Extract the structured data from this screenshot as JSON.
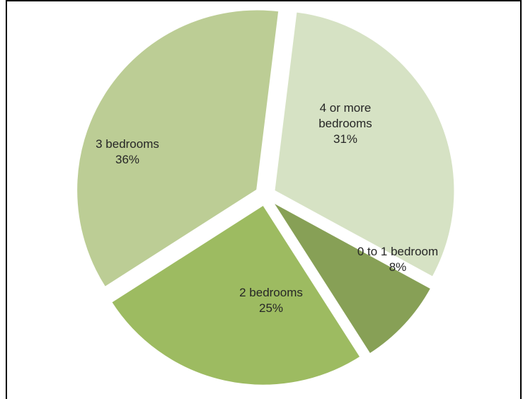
{
  "chart_data": {
    "type": "pie",
    "title": "",
    "categories": [
      "4 or more bedrooms",
      "0 to 1 bedroom",
      "2 bedrooms",
      "3 bedrooms"
    ],
    "values": [
      31,
      8,
      25,
      36
    ],
    "label_lines": [
      [
        "4 or more",
        "bedrooms",
        "31%"
      ],
      [
        "0 to 1 bedroom",
        "8%"
      ],
      [
        "2 bedrooms",
        "25%"
      ],
      [
        "3 bedrooms",
        "36%"
      ]
    ],
    "colors": [
      "#d6e2c4",
      "#87a056",
      "#9dbb61",
      "#bccd95"
    ],
    "exploded": true,
    "legend": "none"
  }
}
